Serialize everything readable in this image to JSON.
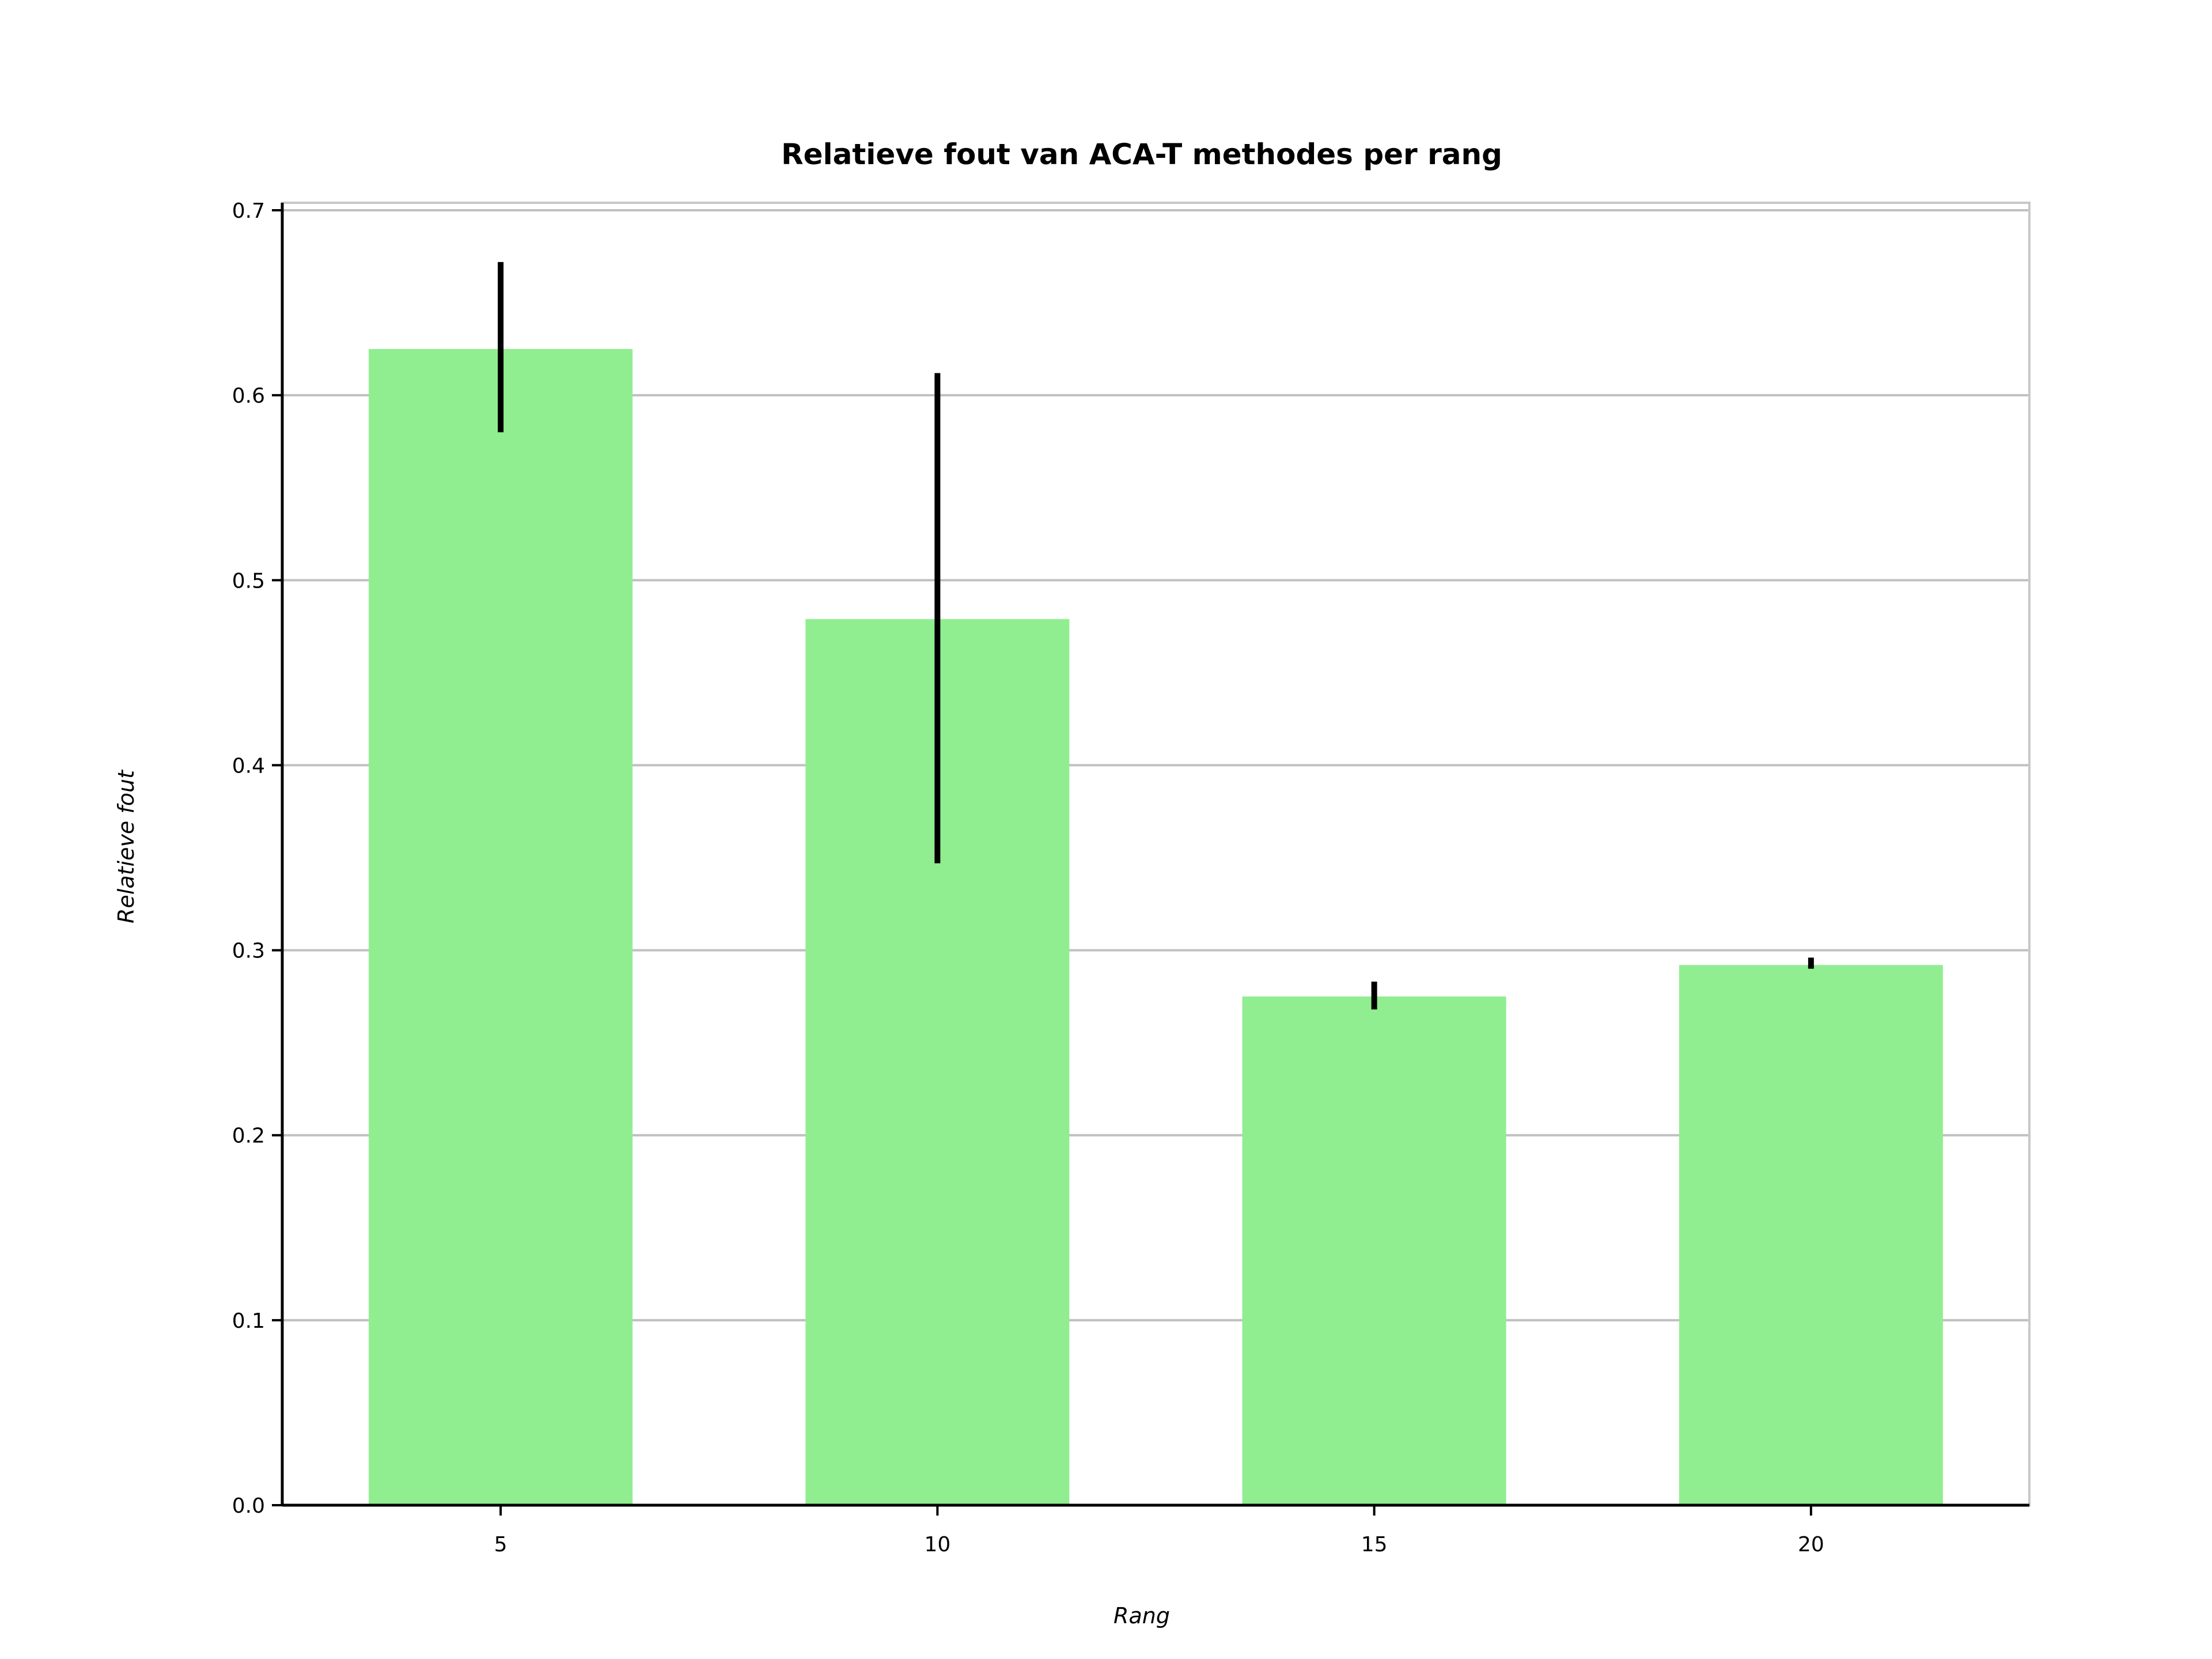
{
  "chart_data": {
    "type": "bar",
    "title": "Relatieve fout van ACA-T methodes per rang",
    "xlabel": "Rang",
    "ylabel": "Relatieve fout",
    "categories": [
      "5",
      "10",
      "15",
      "20"
    ],
    "values": [
      0.625,
      0.479,
      0.275,
      0.292
    ],
    "error_bars": [
      {
        "low": 0.58,
        "high": 0.672
      },
      {
        "low": 0.347,
        "high": 0.612
      },
      {
        "low": 0.268,
        "high": 0.283
      },
      {
        "low": 0.29,
        "high": 0.296
      }
    ],
    "ylim": [
      0.0,
      0.7
    ],
    "yticks": [
      "0.0",
      "0.1",
      "0.2",
      "0.3",
      "0.4",
      "0.5",
      "0.6",
      "0.7"
    ],
    "grid": "y-axis horizontal lines",
    "legend": "none",
    "colors": {
      "bar": "#90ee90",
      "error_bar": "#000000",
      "grid": "#c0c0c0",
      "frame": "#c8c8c8",
      "axis": "#000000"
    }
  }
}
